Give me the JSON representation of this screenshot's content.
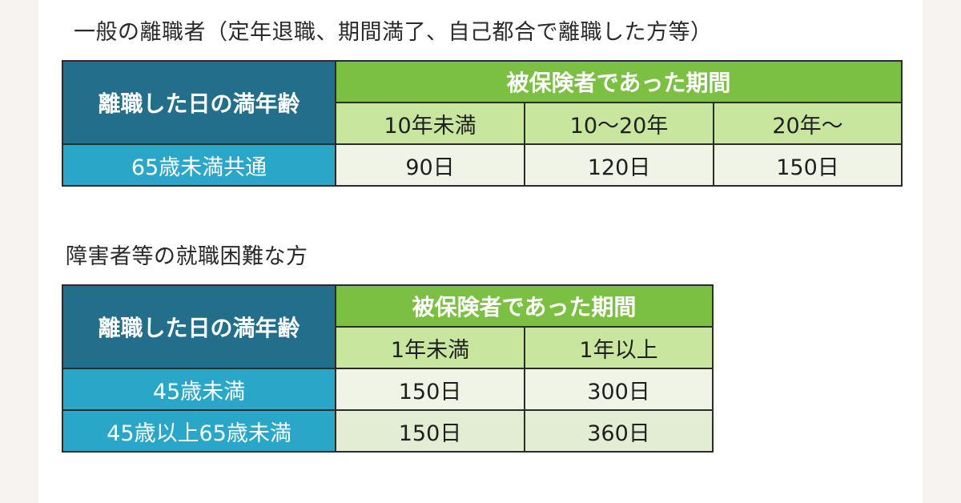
{
  "general": {
    "heading": "一般の離職者（定年退職、期間満了、自己都合で離職した方等）",
    "age_header": "離職した日の満年齢",
    "period_header": "被保険者であった期間",
    "periods": [
      "10年未満",
      "10〜20年",
      "20年〜"
    ],
    "rows": [
      {
        "label": "65歳未満共通",
        "values": [
          "90日",
          "120日",
          "150日"
        ]
      }
    ]
  },
  "disabled": {
    "heading": "障害者等の就職困難な方",
    "age_header": "離職した日の満年齢",
    "period_header": "被保険者であった期間",
    "periods": [
      "1年未満",
      "1年以上"
    ],
    "rows": [
      {
        "label": "45歳未満",
        "values": [
          "150日",
          "300日"
        ]
      },
      {
        "label": "45歳以上65歳未満",
        "values": [
          "150日",
          "360日"
        ]
      }
    ]
  },
  "colors": {
    "age_header_bg": "#236f8b",
    "period_header_bg": "#7cc043",
    "period_sub_bg": "#c8e69d",
    "row_label_bg": "#2aa6c9",
    "cell_bg": "#eff4e7"
  }
}
